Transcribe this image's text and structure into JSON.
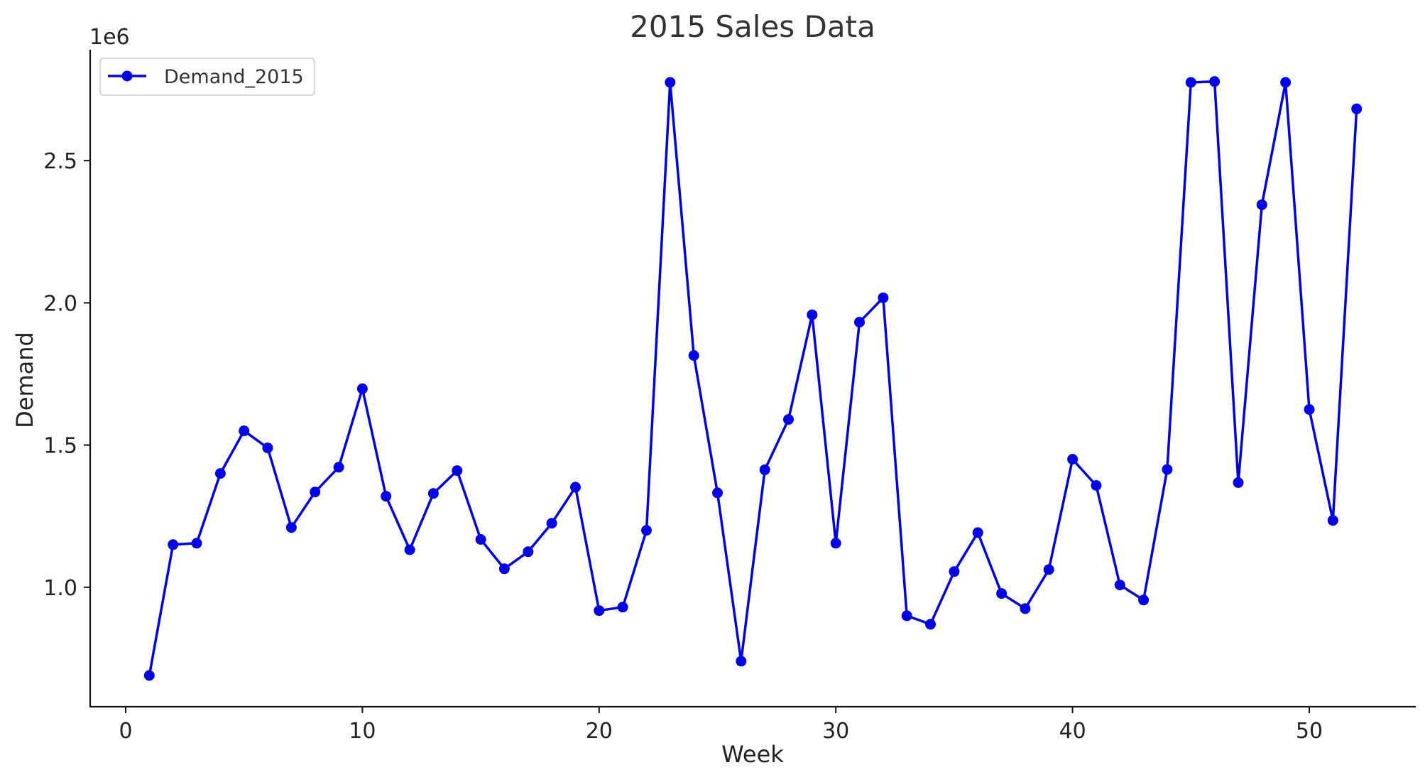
{
  "chart_data": {
    "type": "line",
    "title": "2015 Sales Data",
    "xlabel": "Week",
    "ylabel": "Demand",
    "offset_label": "1e6",
    "xlim": [
      -1.5,
      54.5
    ],
    "ylim": [
      580000,
      2890000
    ],
    "x_ticks": [
      0,
      10,
      20,
      30,
      40,
      50
    ],
    "x_tick_labels": [
      "0",
      "10",
      "20",
      "30",
      "40",
      "50"
    ],
    "y_ticks": [
      1000000,
      1500000,
      2000000,
      2500000
    ],
    "y_tick_labels": [
      "1.0",
      "1.5",
      "2.0",
      "2.5"
    ],
    "grid": false,
    "legend_position": "top-left",
    "series": [
      {
        "name": "Demand_2015",
        "color": "#0000ee",
        "marker": "circle",
        "x": [
          1,
          2,
          3,
          4,
          5,
          6,
          7,
          8,
          9,
          10,
          11,
          12,
          13,
          14,
          15,
          16,
          17,
          18,
          19,
          20,
          21,
          22,
          23,
          24,
          25,
          26,
          27,
          28,
          29,
          30,
          31,
          32,
          33,
          34,
          35,
          36,
          37,
          38,
          39,
          40,
          41,
          42,
          43,
          44,
          45,
          46,
          47,
          48,
          49,
          50,
          51,
          52
        ],
        "y": [
          690000,
          1150000,
          1155000,
          1400000,
          1550000,
          1490000,
          1210000,
          1335000,
          1422000,
          1698000,
          1320000,
          1132000,
          1330000,
          1410000,
          1168000,
          1065000,
          1125000,
          1225000,
          1352000,
          918000,
          930000,
          1200000,
          2775000,
          1815000,
          1332000,
          740000,
          1413000,
          1590000,
          1958000,
          1155000,
          1932000,
          2018000,
          900000,
          870000,
          1055000,
          1192000,
          978000,
          925000,
          1062000,
          1450000,
          1358000,
          1008000,
          955000,
          1414000,
          2775000,
          2778000,
          1368000,
          2345000,
          2775000,
          1625000,
          1235000,
          2682000
        ]
      }
    ]
  }
}
